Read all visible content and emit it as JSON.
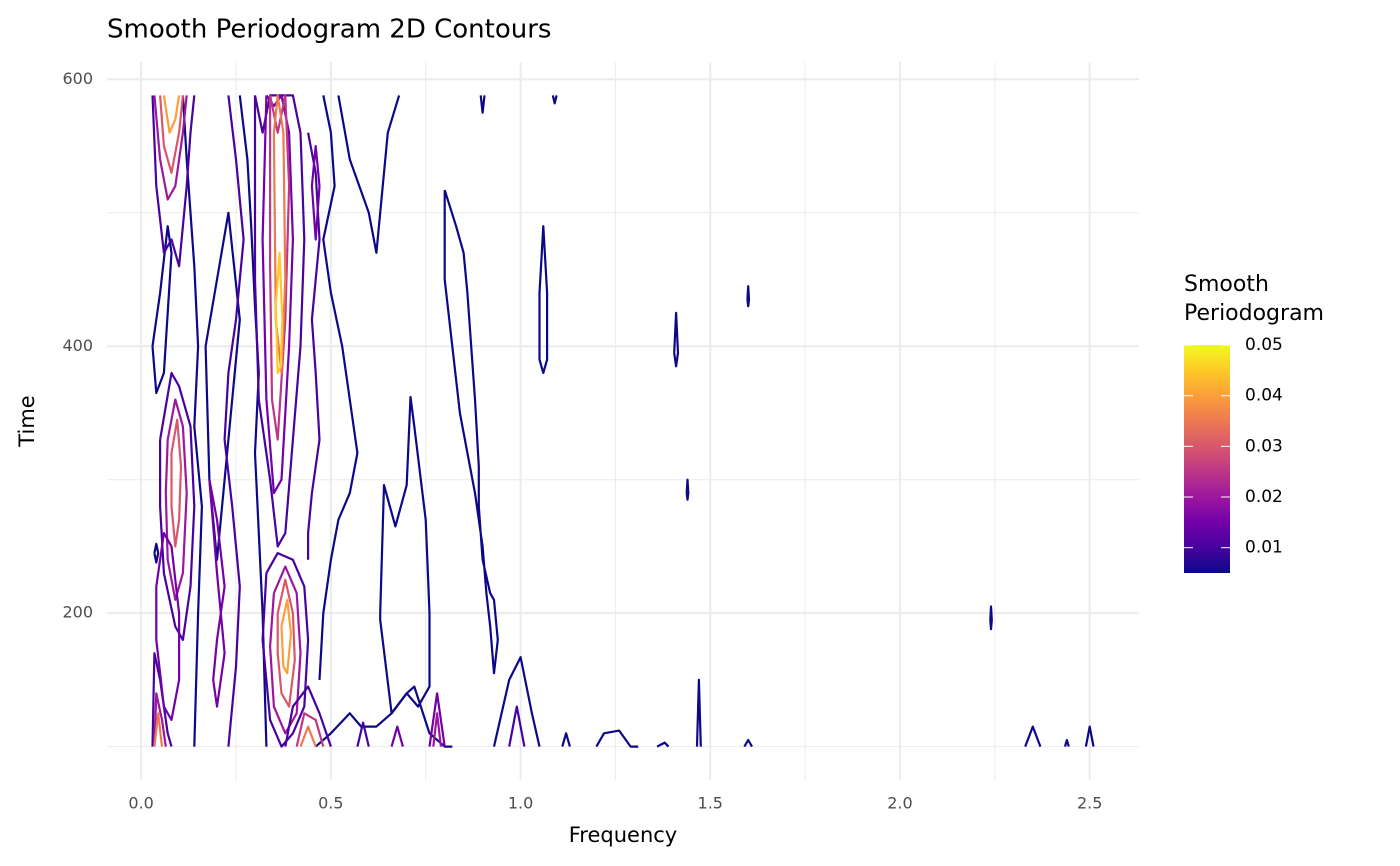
{
  "chart_data": {
    "type": "contour",
    "title": "Smooth Periodogram 2D Contours",
    "x_label": "Frequency",
    "y_label": "Time",
    "legend_title": "Smooth Periodogram",
    "xlim": [
      -0.09,
      2.63
    ],
    "ylim": [
      75,
      613
    ],
    "xticks": [
      {
        "value": 0,
        "label": "0.0"
      },
      0.5,
      {
        "value": 1,
        "label": "1.0"
      },
      1.5,
      {
        "value": 2,
        "label": "2.0"
      },
      2.5
    ],
    "yticks": [
      200,
      400,
      600
    ],
    "xminor": [
      0.25,
      0.75,
      1.25,
      1.75,
      2.25
    ],
    "yminor": [
      100,
      300,
      500
    ],
    "grid": true,
    "colorscale": [
      "#0d0887",
      "#46039f",
      "#7201a8",
      "#9c179e",
      "#bd3786",
      "#d8576b",
      "#ed7953",
      "#fb9f3a",
      "#fdca26",
      "#f0f921"
    ],
    "colorbar_lim": [
      0.005,
      0.05
    ],
    "colorbar_ticks": [
      0.01,
      0.02,
      0.03,
      0.04,
      0.05
    ],
    "contours": [
      {
        "level": 0.005,
        "x": [
          1.05,
          1.06,
          1.07,
          1.07,
          1.06,
          1.05,
          1.05
        ],
        "y": [
          440,
          490,
          440,
          390,
          380,
          390,
          440
        ]
      },
      {
        "level": 0.005,
        "x": [
          1.405,
          1.41,
          1.415,
          1.41,
          1.405
        ],
        "y": [
          395,
          425,
          395,
          385,
          395
        ]
      },
      {
        "level": 0.005,
        "x": [
          1.598,
          1.6,
          1.602,
          1.6,
          1.598
        ],
        "y": [
          435,
          445,
          435,
          430,
          435
        ]
      },
      {
        "level": 0.005,
        "x": [
          1.438,
          1.44,
          1.442,
          1.44,
          1.438
        ],
        "y": [
          290,
          300,
          290,
          285,
          290
        ]
      },
      {
        "level": 0.005,
        "x": [
          2.238,
          2.24,
          2.242,
          2.24,
          2.238
        ],
        "y": [
          195,
          205,
          195,
          188,
          195
        ]
      },
      {
        "level": 0.005,
        "x": [
          0.895,
          0.9,
          0.905
        ],
        "y": [
          588,
          575,
          588
        ]
      },
      {
        "level": 0.005,
        "x": [
          1.085,
          1.09,
          1.095
        ],
        "y": [
          588,
          582,
          588
        ]
      },
      {
        "level": 0.005,
        "x": [
          1.465,
          1.47,
          1.475
        ],
        "y": [
          100,
          150,
          100
        ]
      },
      {
        "level": 0.005,
        "x": [
          1.11,
          1.12,
          1.13
        ],
        "y": [
          100,
          110,
          100
        ]
      },
      {
        "level": 0.005,
        "x": [
          1.2,
          1.22,
          1.26,
          1.29,
          1.31
        ],
        "y": [
          100,
          110,
          112,
          100,
          100
        ]
      },
      {
        "level": 0.005,
        "x": [
          1.36,
          1.38,
          1.39
        ],
        "y": [
          100,
          103,
          100
        ]
      },
      {
        "level": 0.005,
        "x": [
          1.59,
          1.6,
          1.61
        ],
        "y": [
          100,
          105,
          100
        ]
      },
      {
        "level": 0.005,
        "x": [
          2.33,
          2.35,
          2.37
        ],
        "y": [
          100,
          115,
          100
        ]
      },
      {
        "level": 0.005,
        "x": [
          2.49,
          2.5,
          2.51
        ],
        "y": [
          100,
          115,
          100
        ]
      },
      {
        "level": 0.005,
        "x": [
          2.435,
          2.44,
          2.445
        ],
        "y": [
          100,
          105,
          100
        ]
      },
      {
        "level": 0.005,
        "x": [
          0.8,
          0.83,
          0.85,
          0.86,
          0.87,
          0.88,
          0.89,
          0.89,
          0.9,
          0.92,
          0.93,
          0.94,
          0.93,
          0.92,
          0.91,
          0.9,
          0.88,
          0.86,
          0.84,
          0.82,
          0.8,
          0.8
        ],
        "y": [
          517,
          490,
          470,
          440,
          400,
          360,
          310,
          280,
          240,
          215,
          210,
          180,
          155,
          190,
          215,
          250,
          290,
          320,
          350,
          400,
          450,
          517
        ]
      },
      {
        "level": 0.005,
        "x": [
          0.93,
          0.97,
          1.0,
          1.03,
          1.05
        ],
        "y": [
          100,
          150,
          167,
          125,
          100
        ]
      },
      {
        "level": 0.005,
        "x": [
          0.63,
          0.64,
          0.67,
          0.7,
          0.71,
          0.72,
          0.75,
          0.76,
          0.76,
          0.73,
          0.7,
          0.66,
          0.63,
          0.63
        ],
        "y": [
          200,
          296,
          265,
          296,
          362,
          340,
          270,
          200,
          145,
          130,
          140,
          125,
          195,
          200
        ]
      },
      {
        "level": 0.005,
        "x": [
          0.46,
          0.5,
          0.55,
          0.58,
          0.62,
          0.66,
          0.7,
          0.72,
          0.76,
          0.8,
          0.82
        ],
        "y": [
          100,
          110,
          125,
          115,
          115,
          125,
          140,
          145,
          110,
          100,
          100
        ]
      },
      {
        "level": 0.005,
        "x": [
          0.48,
          0.5,
          0.51,
          0.48,
          0.5,
          0.53,
          0.55,
          0.57,
          0.55,
          0.52,
          0.5,
          0.48,
          0.47
        ],
        "y": [
          588,
          560,
          520,
          480,
          440,
          400,
          360,
          320,
          290,
          270,
          240,
          200,
          150
        ]
      },
      {
        "level": 0.005,
        "x": [
          0.52,
          0.55,
          0.6,
          0.62,
          0.65,
          0.68
        ],
        "y": [
          588,
          540,
          500,
          470,
          560,
          588
        ]
      },
      {
        "level": 0.005,
        "x": [
          0.03,
          0.05,
          0.07,
          0.08,
          0.06,
          0.04,
          0.03
        ],
        "y": [
          400,
          440,
          490,
          470,
          380,
          365,
          400
        ]
      },
      {
        "level": 0.005,
        "x": [
          0.17,
          0.2,
          0.23,
          0.26,
          0.24,
          0.22,
          0.2,
          0.18,
          0.17
        ],
        "y": [
          400,
          450,
          500,
          420,
          360,
          300,
          240,
          300,
          400
        ]
      },
      {
        "level": 0.005,
        "x": [
          0.035,
          0.04,
          0.045,
          0.04,
          0.035
        ],
        "y": [
          245,
          252,
          245,
          238,
          245
        ]
      },
      {
        "level": 0.005,
        "x": [
          0.11,
          0.12,
          0.13,
          0.14,
          0.15,
          0.14,
          0.16,
          0.15,
          0.14
        ],
        "y": [
          588,
          540,
          500,
          460,
          400,
          340,
          280,
          200,
          100
        ]
      },
      {
        "level": 0.005,
        "x": [
          0.26,
          0.28,
          0.29,
          0.3,
          0.31,
          0.3,
          0.31,
          0.32,
          0.33
        ],
        "y": [
          588,
          540,
          490,
          430,
          380,
          320,
          260,
          200,
          100
        ]
      },
      {
        "level": 0.01,
        "x": [
          0.3,
          0.32,
          0.34,
          0.36,
          0.4,
          0.42,
          0.43,
          0.42,
          0.4,
          0.38,
          0.36,
          0.34,
          0.31,
          0.3,
          0.3
        ],
        "y": [
          588,
          560,
          588,
          588,
          588,
          560,
          480,
          400,
          330,
          260,
          250,
          300,
          360,
          450,
          588
        ]
      },
      {
        "level": 0.015,
        "x": [
          0.33,
          0.35,
          0.37,
          0.39,
          0.4,
          0.39,
          0.37,
          0.35,
          0.33,
          0.32,
          0.33
        ],
        "y": [
          588,
          580,
          588,
          560,
          480,
          400,
          300,
          290,
          360,
          480,
          588
        ]
      },
      {
        "level": 0.025,
        "x": [
          0.34,
          0.36,
          0.38,
          0.39,
          0.38,
          0.36,
          0.345,
          0.34,
          0.34
        ],
        "y": [
          588,
          560,
          588,
          520,
          420,
          330,
          360,
          460,
          588
        ]
      },
      {
        "level": 0.035,
        "x": [
          0.35,
          0.36,
          0.375,
          0.38,
          0.37,
          0.355,
          0.35
        ],
        "y": [
          560,
          588,
          560,
          450,
          380,
          420,
          560
        ]
      },
      {
        "level": 0.045,
        "x": [
          0.355,
          0.365,
          0.372,
          0.368,
          0.36,
          0.355
        ],
        "y": [
          430,
          470,
          420,
          385,
          380,
          430
        ]
      },
      {
        "level": 0.01,
        "x": [
          0.33,
          0.36,
          0.4,
          0.43,
          0.44,
          0.43,
          0.4,
          0.37,
          0.34,
          0.32,
          0.33
        ],
        "y": [
          230,
          245,
          240,
          220,
          180,
          130,
          110,
          100,
          120,
          180,
          230
        ]
      },
      {
        "level": 0.02,
        "x": [
          0.35,
          0.38,
          0.41,
          0.42,
          0.41,
          0.38,
          0.35,
          0.34,
          0.35
        ],
        "y": [
          215,
          235,
          215,
          170,
          125,
          110,
          130,
          175,
          215
        ]
      },
      {
        "level": 0.03,
        "x": [
          0.36,
          0.38,
          0.4,
          0.405,
          0.39,
          0.37,
          0.36,
          0.36
        ],
        "y": [
          200,
          225,
          200,
          165,
          130,
          140,
          170,
          200
        ]
      },
      {
        "level": 0.04,
        "x": [
          0.37,
          0.385,
          0.395,
          0.385,
          0.375,
          0.37
        ],
        "y": [
          190,
          210,
          185,
          155,
          160,
          190
        ]
      },
      {
        "level": 0.01,
        "x": [
          0.05,
          0.08,
          0.1,
          0.13,
          0.14,
          0.13,
          0.11,
          0.09,
          0.06,
          0.05,
          0.05
        ],
        "y": [
          330,
          380,
          370,
          340,
          280,
          220,
          180,
          190,
          230,
          280,
          330
        ]
      },
      {
        "level": 0.02,
        "x": [
          0.07,
          0.09,
          0.11,
          0.12,
          0.11,
          0.09,
          0.07,
          0.065,
          0.07
        ],
        "y": [
          330,
          360,
          340,
          290,
          230,
          210,
          240,
          290,
          330
        ]
      },
      {
        "level": 0.03,
        "x": [
          0.08,
          0.095,
          0.105,
          0.1,
          0.09,
          0.08,
          0.08
        ],
        "y": [
          320,
          345,
          310,
          270,
          250,
          280,
          320
        ]
      },
      {
        "level": 0.01,
        "x": [
          0.03,
          0.04,
          0.06,
          0.08,
          0.1,
          0.12,
          0.13,
          0.14
        ],
        "y": [
          588,
          520,
          470,
          480,
          460,
          520,
          560,
          588
        ]
      },
      {
        "level": 0.02,
        "x": [
          0.035,
          0.05,
          0.07,
          0.09,
          0.11,
          0.12
        ],
        "y": [
          588,
          540,
          510,
          520,
          560,
          588
        ]
      },
      {
        "level": 0.03,
        "x": [
          0.05,
          0.06,
          0.08,
          0.1,
          0.11
        ],
        "y": [
          588,
          550,
          530,
          560,
          588
        ]
      },
      {
        "level": 0.04,
        "x": [
          0.06,
          0.075,
          0.09,
          0.1
        ],
        "y": [
          588,
          560,
          570,
          588
        ]
      },
      {
        "level": 0.01,
        "x": [
          0.03,
          0.035,
          0.05,
          0.07,
          0.08
        ],
        "y": [
          100,
          170,
          150,
          110,
          100
        ]
      },
      {
        "level": 0.02,
        "x": [
          0.035,
          0.04,
          0.055,
          0.065
        ],
        "y": [
          100,
          140,
          120,
          100
        ]
      },
      {
        "level": 0.035,
        "x": [
          0.035,
          0.045,
          0.055
        ],
        "y": [
          100,
          125,
          100
        ]
      },
      {
        "level": 0.01,
        "x": [
          0.38,
          0.4,
          0.44,
          0.47,
          0.5
        ],
        "y": [
          100,
          130,
          145,
          125,
          100
        ]
      },
      {
        "level": 0.025,
        "x": [
          0.41,
          0.43,
          0.46,
          0.48
        ],
        "y": [
          100,
          125,
          120,
          100
        ]
      },
      {
        "level": 0.035,
        "x": [
          0.42,
          0.44,
          0.46
        ],
        "y": [
          100,
          115,
          100
        ]
      },
      {
        "level": 0.01,
        "x": [
          0.57,
          0.585,
          0.6
        ],
        "y": [
          100,
          118,
          100
        ]
      },
      {
        "level": 0.015,
        "x": [
          0.66,
          0.675,
          0.69
        ],
        "y": [
          100,
          115,
          100
        ]
      },
      {
        "level": 0.015,
        "x": [
          0.76,
          0.78,
          0.8
        ],
        "y": [
          100,
          140,
          100
        ]
      },
      {
        "level": 0.02,
        "x": [
          0.77,
          0.78,
          0.79
        ],
        "y": [
          100,
          125,
          100
        ]
      },
      {
        "level": 0.01,
        "x": [
          0.97,
          0.99,
          1.01
        ],
        "y": [
          100,
          130,
          100
        ]
      },
      {
        "level": 0.01,
        "x": [
          0.23,
          0.25,
          0.27,
          0.25,
          0.23,
          0.22,
          0.24,
          0.26,
          0.25,
          0.23
        ],
        "y": [
          588,
          540,
          480,
          420,
          380,
          330,
          280,
          220,
          160,
          100
        ]
      },
      {
        "level": 0.015,
        "x": [
          0.18,
          0.2,
          0.22,
          0.2,
          0.19,
          0.2,
          0.22,
          0.2,
          0.18
        ],
        "y": [
          300,
          270,
          220,
          180,
          150,
          130,
          170,
          230,
          300
        ]
      },
      {
        "level": 0.01,
        "x": [
          0.44,
          0.46,
          0.47,
          0.45,
          0.46,
          0.47,
          0.45,
          0.44,
          0.44
        ],
        "y": [
          560,
          530,
          480,
          420,
          380,
          330,
          290,
          260,
          240
        ]
      },
      {
        "level": 0.015,
        "x": [
          0.45,
          0.46,
          0.47,
          0.46,
          0.45
        ],
        "y": [
          520,
          550,
          520,
          480,
          520
        ]
      },
      {
        "level": 0.015,
        "x": [
          0.04,
          0.06,
          0.08,
          0.1,
          0.1,
          0.08,
          0.06,
          0.04,
          0.04
        ],
        "y": [
          220,
          260,
          250,
          200,
          150,
          120,
          130,
          180,
          220
        ]
      }
    ]
  }
}
